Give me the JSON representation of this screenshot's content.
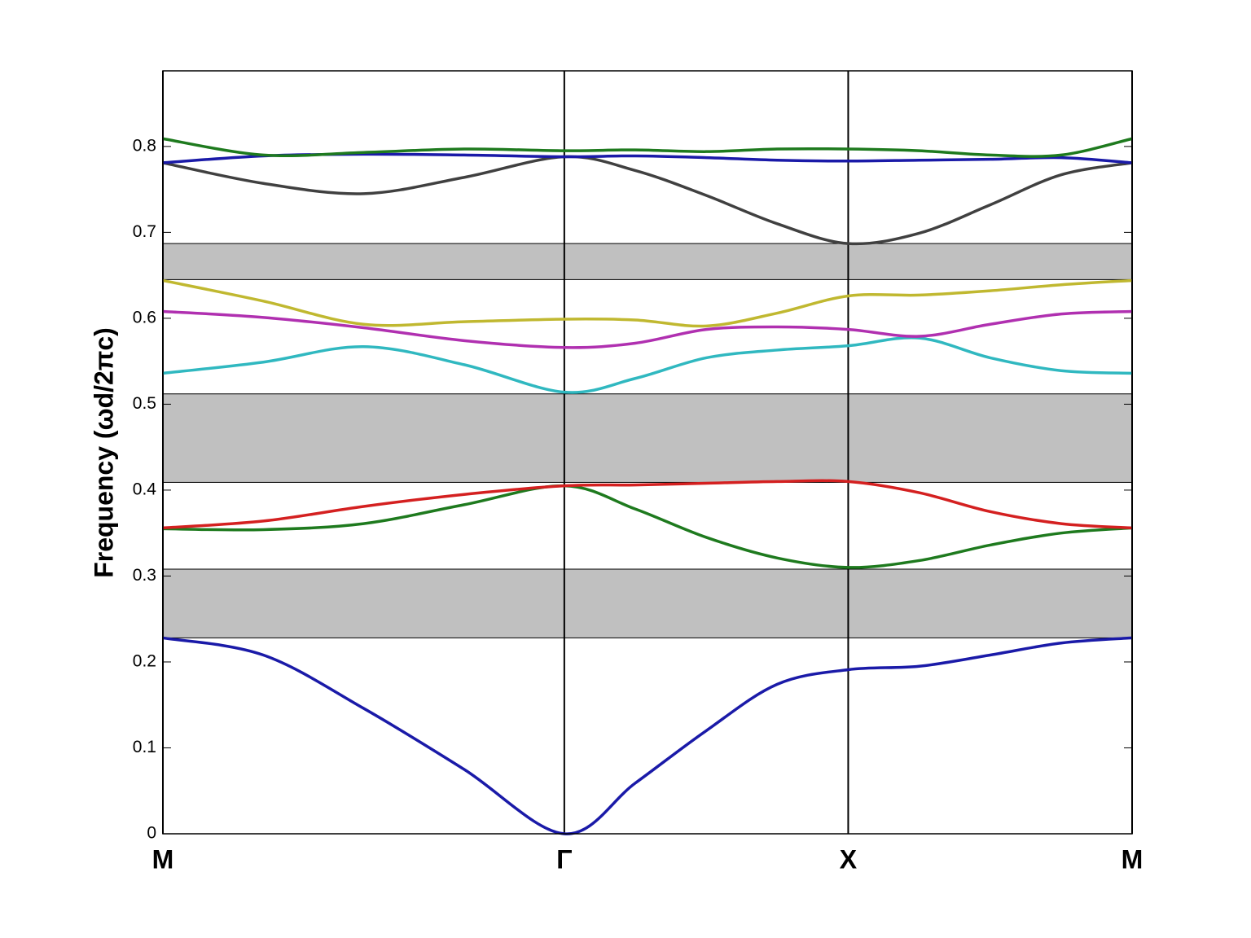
{
  "chart_data": {
    "type": "line",
    "y_label": "Frequency (ωd/2πc)",
    "x": [
      0,
      0.354,
      0.707,
      1.061,
      1.414,
      1.664,
      1.914,
      2.164,
      2.414,
      2.664,
      2.914,
      3.164,
      3.414
    ],
    "xlim": [
      0,
      3.414
    ],
    "xticks": [
      {
        "value": 0,
        "label": "M"
      },
      {
        "value": 1.414,
        "label": "Γ"
      },
      {
        "value": 2.414,
        "label": "X"
      },
      {
        "value": 3.414,
        "label": "M"
      }
    ],
    "ylim": [
      0,
      0.888
    ],
    "yticks": [
      0,
      0.1,
      0.2,
      0.3,
      0.4,
      0.5,
      0.6,
      0.7,
      0.8
    ],
    "bands": [
      [
        0.228,
        0.308
      ],
      [
        0.409,
        0.512
      ],
      [
        0.645,
        0.687
      ]
    ],
    "band_color": "#c0c0c0",
    "series": [
      {
        "color": "#1a1aa8",
        "values": [
          0.228,
          0.208,
          0.146,
          0.075,
          0,
          0.059,
          0.12,
          0.174,
          0.191,
          0.195,
          0.208,
          0.222,
          0.228
        ]
      },
      {
        "color": "#1e7a1e",
        "values": [
          0.355,
          0.354,
          0.361,
          0.383,
          0.405,
          0.378,
          0.345,
          0.321,
          0.31,
          0.318,
          0.336,
          0.35,
          0.356
        ]
      },
      {
        "color": "#d42020",
        "values": [
          0.356,
          0.364,
          0.381,
          0.395,
          0.405,
          0.406,
          0.408,
          0.41,
          0.41,
          0.397,
          0.375,
          0.361,
          0.356
        ]
      },
      {
        "color": "#30b8c0",
        "values": [
          0.536,
          0.549,
          0.567,
          0.546,
          0.514,
          0.53,
          0.554,
          0.563,
          0.568,
          0.577,
          0.554,
          0.539,
          0.536
        ]
      },
      {
        "color": "#b030b0",
        "values": [
          0.608,
          0.601,
          0.589,
          0.574,
          0.566,
          0.571,
          0.587,
          0.59,
          0.587,
          0.579,
          0.593,
          0.605,
          0.608
        ]
      },
      {
        "color": "#c0b830",
        "values": [
          0.644,
          0.62,
          0.593,
          0.596,
          0.599,
          0.598,
          0.591,
          0.606,
          0.626,
          0.627,
          0.632,
          0.639,
          0.644
        ]
      },
      {
        "color": "#404040",
        "values": [
          0.781,
          0.757,
          0.745,
          0.764,
          0.788,
          0.772,
          0.743,
          0.71,
          0.687,
          0.699,
          0.732,
          0.767,
          0.781
        ]
      },
      {
        "color": "#1a1aa8",
        "values": [
          0.781,
          0.789,
          0.791,
          0.79,
          0.788,
          0.789,
          0.787,
          0.784,
          0.783,
          0.784,
          0.785,
          0.787,
          0.781
        ]
      },
      {
        "color": "#1e7a1e",
        "values": [
          0.809,
          0.79,
          0.793,
          0.797,
          0.795,
          0.796,
          0.794,
          0.797,
          0.797,
          0.795,
          0.79,
          0.79,
          0.809
        ]
      }
    ]
  }
}
